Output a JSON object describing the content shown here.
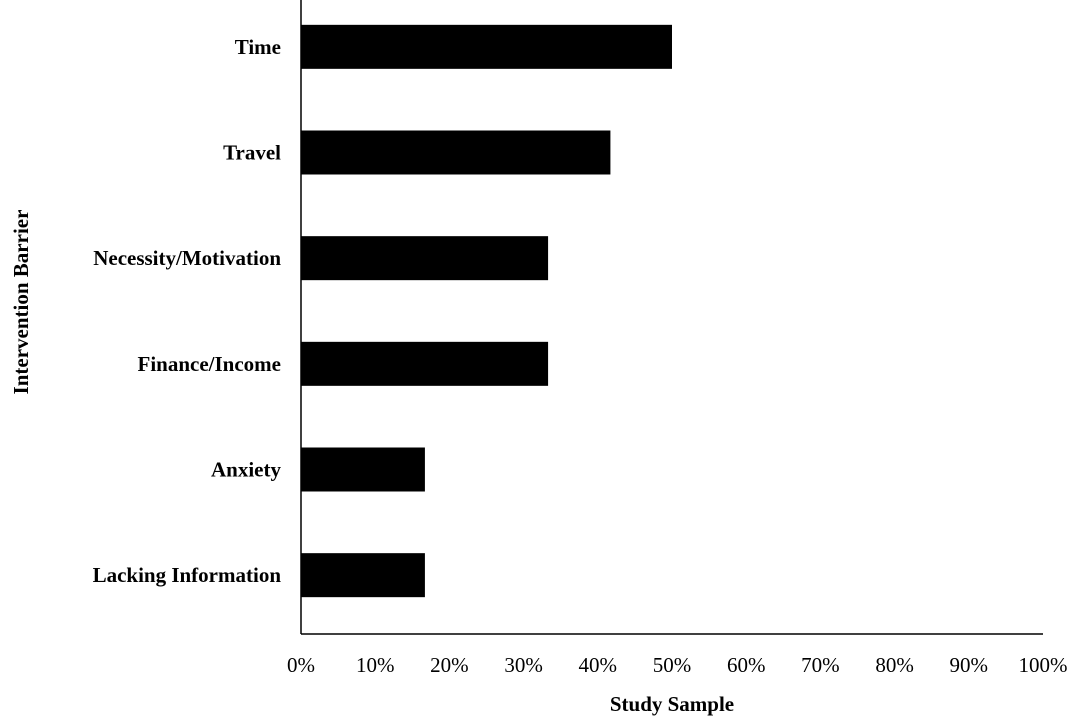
{
  "chart_data": {
    "type": "bar",
    "orientation": "horizontal",
    "title": "",
    "xlabel": "Study Sample",
    "ylabel": "Intervention Barrier",
    "categories": [
      "Time",
      "Travel",
      "Necessity/Motivation",
      "Finance/Income",
      "Anxiety",
      "Lacking Information"
    ],
    "values": [
      50,
      41.7,
      33.3,
      33.3,
      16.7,
      16.7
    ],
    "xlim": [
      0,
      100
    ],
    "xticks": [
      0,
      10,
      20,
      30,
      40,
      50,
      60,
      70,
      80,
      90,
      100
    ],
    "xtick_labels": [
      "0%",
      "10%",
      "20%",
      "30%",
      "40%",
      "50%",
      "60%",
      "70%",
      "80%",
      "90%",
      "100%"
    ],
    "grid": false,
    "legend": "none",
    "bar_color": "#000000"
  }
}
